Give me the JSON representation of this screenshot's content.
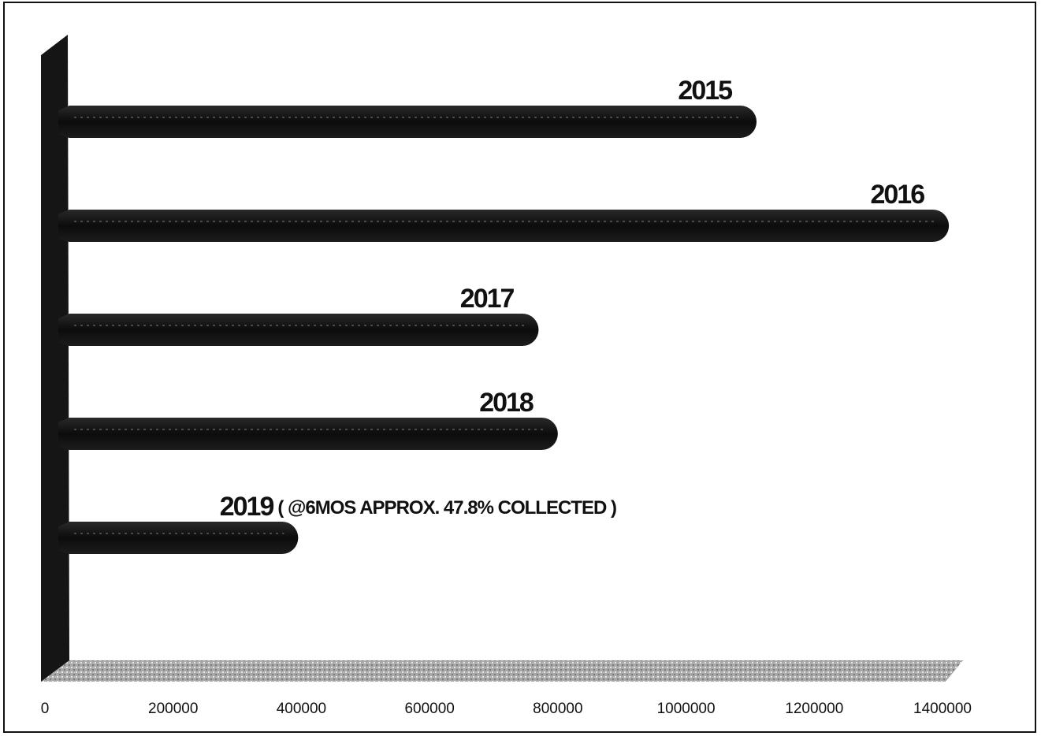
{
  "chart_data": {
    "type": "bar",
    "orientation": "horizontal",
    "style": "3d",
    "categories": [
      "2015",
      "2016",
      "2017",
      "2018",
      "2019"
    ],
    "values": [
      1110000,
      1410000,
      770000,
      800000,
      395000
    ],
    "annotations": [
      {
        "category": "2019",
        "text": "( @6MOS APPROX. 47.8% COLLECTED )"
      }
    ],
    "xticks": [
      "0",
      "200000",
      "400000",
      "600000",
      "800000",
      "1000000",
      "1200000",
      "1400000"
    ],
    "xlim": [
      0,
      1400000
    ],
    "title": "",
    "xlabel": "",
    "ylabel": "",
    "grid": false,
    "legend": "none",
    "colors": {
      "bar": "#111111",
      "floor": "#9a9a9a",
      "wall": "#1a1a1a"
    }
  }
}
